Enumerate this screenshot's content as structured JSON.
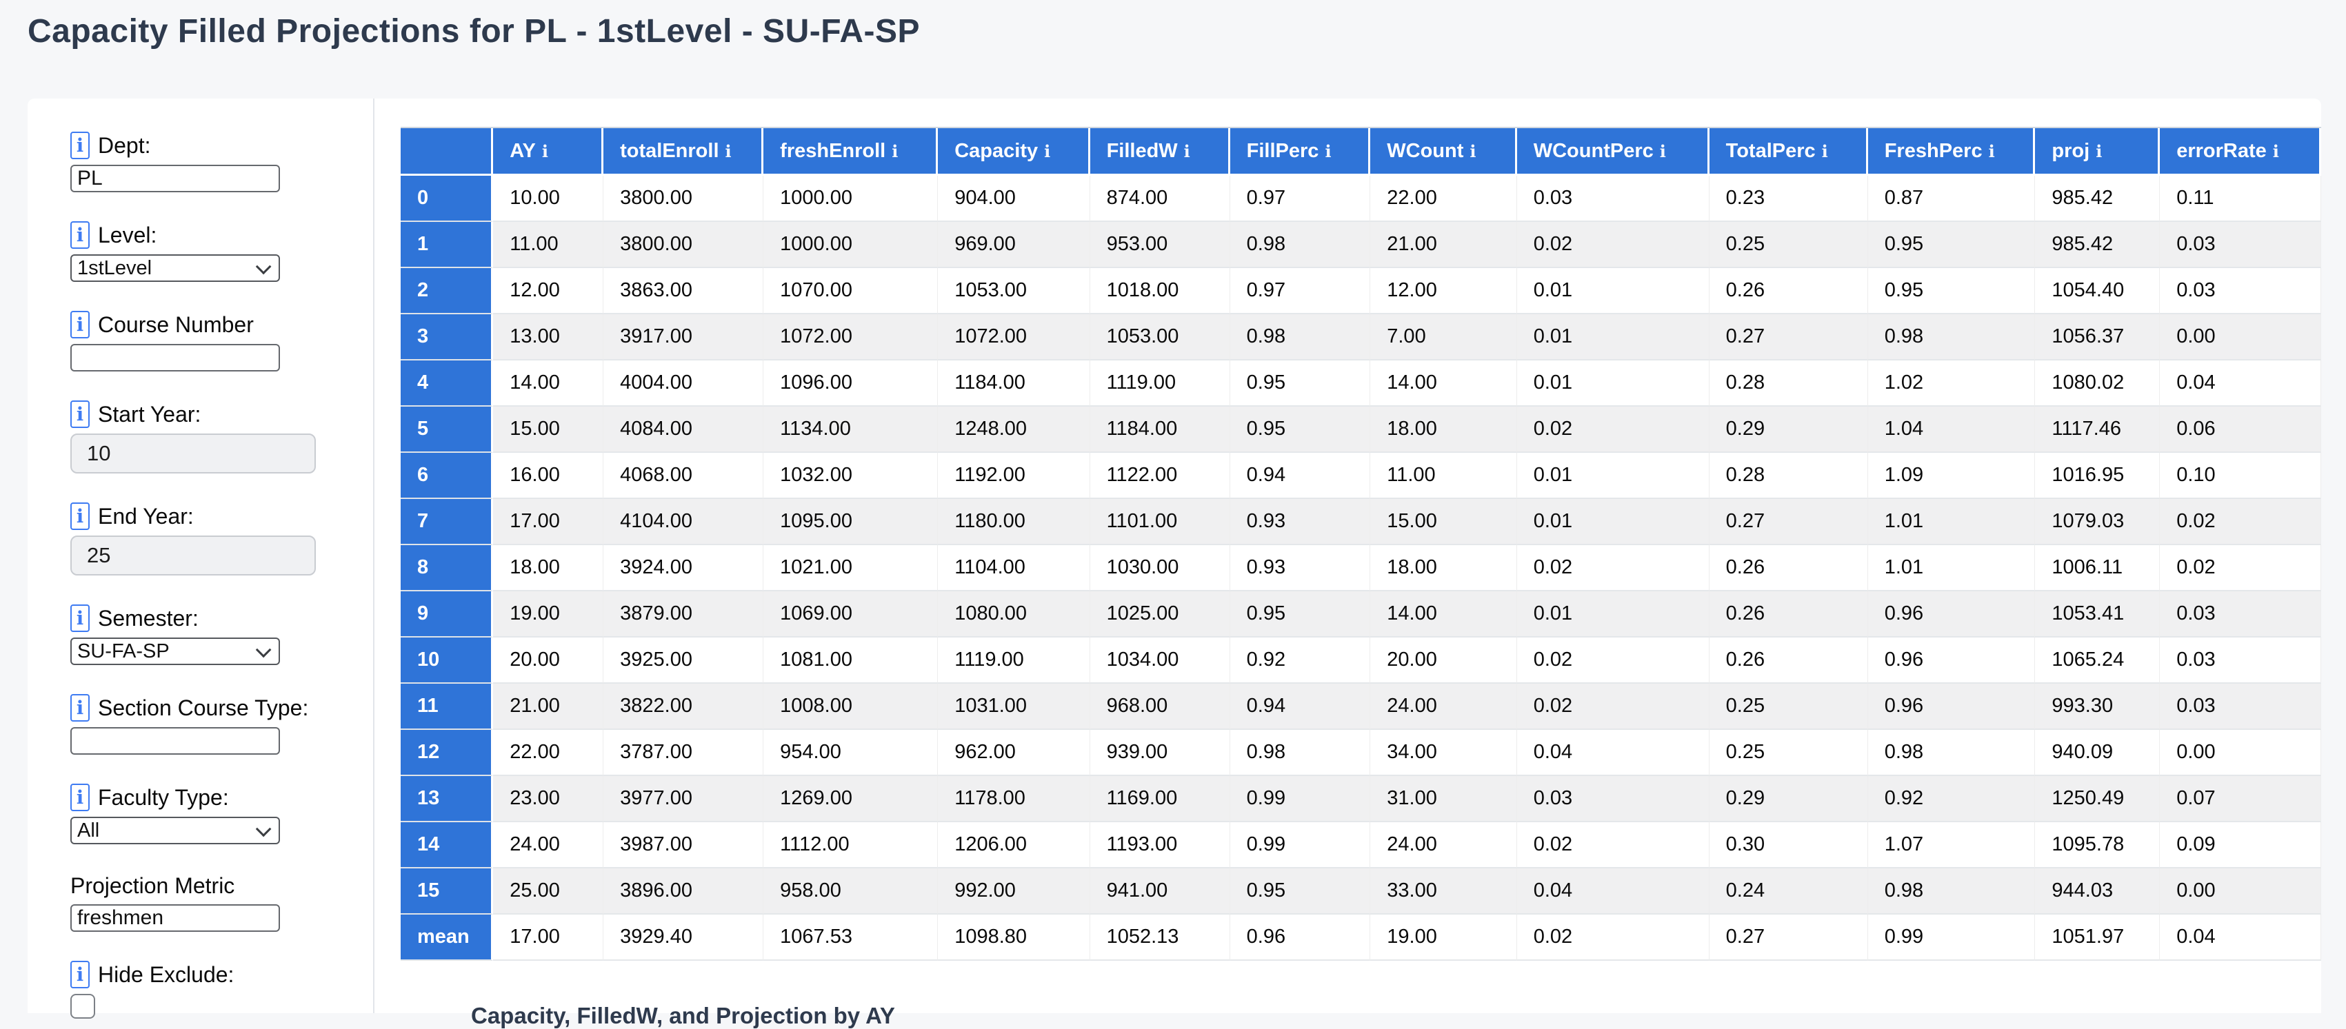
{
  "page": {
    "title": "Capacity Filled Projections for PL - 1stLevel - SU-FA-SP"
  },
  "sidebar": {
    "info_icon_glyph": "i",
    "fields": [
      {
        "id": "dept",
        "label": "Dept:",
        "type": "text",
        "value": "PL",
        "has_info": true
      },
      {
        "id": "level",
        "label": "Level:",
        "type": "select",
        "value": "1stLevel",
        "has_info": true
      },
      {
        "id": "course-number",
        "label": "Course Number",
        "type": "text",
        "value": "",
        "has_info": true
      },
      {
        "id": "start-year",
        "label": "Start Year:",
        "type": "text-disabled",
        "value": "10",
        "has_info": true
      },
      {
        "id": "end-year",
        "label": "End Year:",
        "type": "text-disabled",
        "value": "25",
        "has_info": true
      },
      {
        "id": "semester",
        "label": "Semester:",
        "type": "select",
        "value": "SU-FA-SP",
        "has_info": true
      },
      {
        "id": "section-course-type",
        "label": "Section Course Type:",
        "type": "text",
        "value": "",
        "has_info": true
      },
      {
        "id": "faculty-type",
        "label": "Faculty Type:",
        "type": "select",
        "value": "All",
        "has_info": true
      },
      {
        "id": "projection-metric",
        "label": "Projection Metric",
        "type": "text",
        "value": "freshmen",
        "has_info": false
      },
      {
        "id": "hide-exclude",
        "label": "Hide Exclude:",
        "type": "checkbox",
        "value": false,
        "has_info": true
      }
    ]
  },
  "table": {
    "columns": [
      "AY",
      "totalEnroll",
      "freshEnroll",
      "Capacity",
      "FilledW",
      "FillPerc",
      "WCount",
      "WCountPerc",
      "TotalPerc",
      "FreshPerc",
      "proj",
      "errorRate"
    ],
    "header_info_glyph": "i",
    "rows": [
      {
        "index": "0",
        "values": [
          "10.00",
          "3800.00",
          "1000.00",
          "904.00",
          "874.00",
          "0.97",
          "22.00",
          "0.03",
          "0.23",
          "0.87",
          "985.42",
          "0.11"
        ]
      },
      {
        "index": "1",
        "values": [
          "11.00",
          "3800.00",
          "1000.00",
          "969.00",
          "953.00",
          "0.98",
          "21.00",
          "0.02",
          "0.25",
          "0.95",
          "985.42",
          "0.03"
        ]
      },
      {
        "index": "2",
        "values": [
          "12.00",
          "3863.00",
          "1070.00",
          "1053.00",
          "1018.00",
          "0.97",
          "12.00",
          "0.01",
          "0.26",
          "0.95",
          "1054.40",
          "0.03"
        ]
      },
      {
        "index": "3",
        "values": [
          "13.00",
          "3917.00",
          "1072.00",
          "1072.00",
          "1053.00",
          "0.98",
          "7.00",
          "0.01",
          "0.27",
          "0.98",
          "1056.37",
          "0.00"
        ]
      },
      {
        "index": "4",
        "values": [
          "14.00",
          "4004.00",
          "1096.00",
          "1184.00",
          "1119.00",
          "0.95",
          "14.00",
          "0.01",
          "0.28",
          "1.02",
          "1080.02",
          "0.04"
        ]
      },
      {
        "index": "5",
        "values": [
          "15.00",
          "4084.00",
          "1134.00",
          "1248.00",
          "1184.00",
          "0.95",
          "18.00",
          "0.02",
          "0.29",
          "1.04",
          "1117.46",
          "0.06"
        ]
      },
      {
        "index": "6",
        "values": [
          "16.00",
          "4068.00",
          "1032.00",
          "1192.00",
          "1122.00",
          "0.94",
          "11.00",
          "0.01",
          "0.28",
          "1.09",
          "1016.95",
          "0.10"
        ]
      },
      {
        "index": "7",
        "values": [
          "17.00",
          "4104.00",
          "1095.00",
          "1180.00",
          "1101.00",
          "0.93",
          "15.00",
          "0.01",
          "0.27",
          "1.01",
          "1079.03",
          "0.02"
        ]
      },
      {
        "index": "8",
        "values": [
          "18.00",
          "3924.00",
          "1021.00",
          "1104.00",
          "1030.00",
          "0.93",
          "18.00",
          "0.02",
          "0.26",
          "1.01",
          "1006.11",
          "0.02"
        ]
      },
      {
        "index": "9",
        "values": [
          "19.00",
          "3879.00",
          "1069.00",
          "1080.00",
          "1025.00",
          "0.95",
          "14.00",
          "0.01",
          "0.26",
          "0.96",
          "1053.41",
          "0.03"
        ]
      },
      {
        "index": "10",
        "values": [
          "20.00",
          "3925.00",
          "1081.00",
          "1119.00",
          "1034.00",
          "0.92",
          "20.00",
          "0.02",
          "0.26",
          "0.96",
          "1065.24",
          "0.03"
        ]
      },
      {
        "index": "11",
        "values": [
          "21.00",
          "3822.00",
          "1008.00",
          "1031.00",
          "968.00",
          "0.94",
          "24.00",
          "0.02",
          "0.25",
          "0.96",
          "993.30",
          "0.03"
        ]
      },
      {
        "index": "12",
        "values": [
          "22.00",
          "3787.00",
          "954.00",
          "962.00",
          "939.00",
          "0.98",
          "34.00",
          "0.04",
          "0.25",
          "0.98",
          "940.09",
          "0.00"
        ]
      },
      {
        "index": "13",
        "values": [
          "23.00",
          "3977.00",
          "1269.00",
          "1178.00",
          "1169.00",
          "0.99",
          "31.00",
          "0.03",
          "0.29",
          "0.92",
          "1250.49",
          "0.07"
        ]
      },
      {
        "index": "14",
        "values": [
          "24.00",
          "3987.00",
          "1112.00",
          "1206.00",
          "1193.00",
          "0.99",
          "24.00",
          "0.02",
          "0.30",
          "1.07",
          "1095.78",
          "0.09"
        ]
      },
      {
        "index": "15",
        "values": [
          "25.00",
          "3896.00",
          "958.00",
          "992.00",
          "941.00",
          "0.95",
          "33.00",
          "0.04",
          "0.24",
          "0.98",
          "944.03",
          "0.00"
        ]
      },
      {
        "index": "mean",
        "values": [
          "17.00",
          "3929.40",
          "1067.53",
          "1098.80",
          "1052.13",
          "0.96",
          "19.00",
          "0.02",
          "0.27",
          "0.99",
          "1051.97",
          "0.04"
        ]
      }
    ]
  },
  "footer": {
    "chart_title": "Capacity, FilledW, and Projection by AY"
  },
  "colors": {
    "accent_blue": "#2f74d8",
    "row_alt": "#f0f0f1",
    "title_text": "#2e3a4d",
    "info_blue": "#3e7bf2",
    "page_bg": "#f6f7f9"
  }
}
